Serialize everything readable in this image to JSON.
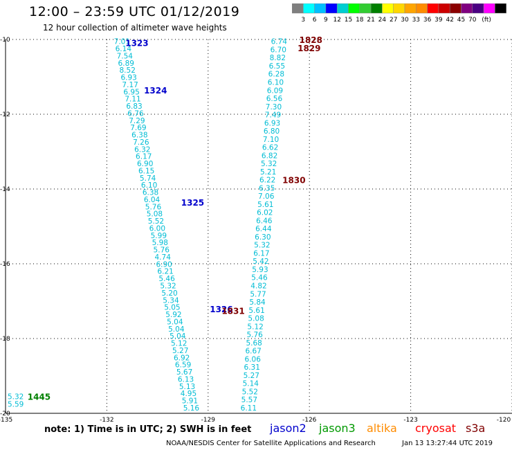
{
  "header": {
    "title": "12:00 – 23:59 UTC 01/12/2019",
    "subtitle": "12 hour collection of altimeter wave heights"
  },
  "colorbar": {
    "colors": [
      "#7f7f7f",
      "#00ffff",
      "#00bfff",
      "#0000ff",
      "#00ced1",
      "#00ff00",
      "#32cd32",
      "#008000",
      "#ffff00",
      "#ffd700",
      "#ffa500",
      "#ff8c00",
      "#ff0000",
      "#cc0000",
      "#8b0000",
      "#800080",
      "#4b0082",
      "#ff00ff",
      "#000000"
    ],
    "labels": [
      "3",
      "6",
      "9",
      "12",
      "15",
      "18",
      "21",
      "24",
      "27",
      "30",
      "33",
      "36",
      "39",
      "42",
      "45",
      "70",
      "(ft)"
    ]
  },
  "map": {
    "lon_range": [
      -135,
      -120
    ],
    "lat_range": [
      -20,
      -10
    ],
    "x_ticks": [
      -135,
      -132,
      -129,
      -126,
      -123,
      -120
    ],
    "y_ticks": [
      -10,
      -12,
      -14,
      -16,
      -18,
      -20
    ],
    "x_tick_labels": [
      "-135",
      "-132",
      "-129",
      "-126",
      "-123",
      "-120"
    ],
    "y_tick_labels": [
      "-10",
      "-12",
      "-14",
      "-16",
      "-18",
      "-20"
    ],
    "value_color": "#00bcd4",
    "tracks": [
      {
        "id": "track-a",
        "start": [
          -131.55,
          -10.05
        ],
        "end": [
          -129.5,
          -19.85
        ],
        "values": [
          "7.01",
          "6.14",
          "7.54",
          "6.89",
          "8.52",
          "6.93",
          "7.17",
          "6.95",
          "7.11",
          "6.83",
          "6.76",
          "7.29",
          "7.69",
          "6.38",
          "7.26",
          "6.32",
          "6.17",
          "6.90",
          "6.15",
          "5.74",
          "6.10",
          "6.38",
          "6.04",
          "5.76",
          "5.08",
          "5.52",
          "6.00",
          "5.99",
          "5.98",
          "5.76",
          "4.74",
          "6.90",
          "6.21",
          "5.46",
          "5.32",
          "5.20",
          "5.34",
          "5.05",
          "5.92",
          "5.04",
          "5.04",
          "5.04",
          "5.12",
          "5.27",
          "6.92",
          "6.59",
          "5.67",
          "6.13",
          "5.13",
          "4.95",
          "5.91",
          "5.16"
        ]
      },
      {
        "id": "track-b",
        "start": [
          -126.9,
          -10.05
        ],
        "end": [
          -127.8,
          -19.85
        ],
        "values": [
          "6.74",
          "6.70",
          "8.82",
          "6.55",
          "6.28",
          "6.10",
          "6.09",
          "6.56",
          "7.30",
          "7.49",
          "6.93",
          "6.80",
          "7.10",
          "6.62",
          "6.82",
          "5.32",
          "5.21",
          "6.22",
          "6.35",
          "7.06",
          "5.61",
          "6.02",
          "6.46",
          "6.44",
          "6.30",
          "5.32",
          "6.17",
          "5.42",
          "5.93",
          "5.46",
          "4.82",
          "5.77",
          "5.84",
          "5.61",
          "5.08",
          "5.12",
          "5.76",
          "5.68",
          "6.67",
          "6.06",
          "6.31",
          "5.27",
          "5.14",
          "5.52",
          "5.57",
          "6.11"
        ]
      },
      {
        "id": "track-c",
        "start": [
          -134.7,
          -19.55
        ],
        "end": [
          -134.7,
          -19.75
        ],
        "values": [
          "5.32",
          "5.59"
        ]
      }
    ],
    "time_labels": [
      {
        "text": "1323",
        "color": "#0000cc",
        "lon": -131.45,
        "lat": -10.08
      },
      {
        "text": "1324",
        "color": "#0000cc",
        "lon": -130.9,
        "lat": -11.35
      },
      {
        "text": "1325",
        "color": "#0000cc",
        "lon": -129.8,
        "lat": -14.35
      },
      {
        "text": "1326",
        "color": "#0000cc",
        "lon": -128.95,
        "lat": -17.2
      },
      {
        "text": "1828",
        "color": "#800000",
        "lon": -126.3,
        "lat": -10.0
      },
      {
        "text": "1829",
        "color": "#800000",
        "lon": -126.35,
        "lat": -10.22
      },
      {
        "text": "1830",
        "color": "#800000",
        "lon": -126.8,
        "lat": -13.75
      },
      {
        "text": "1831",
        "color": "#800000",
        "lon": -128.6,
        "lat": -17.25
      },
      {
        "text": "1445",
        "color": "#008000",
        "lon": -134.35,
        "lat": -19.55
      }
    ]
  },
  "footer": {
    "note": "note: 1) Time is in UTC; 2) SWH is in feet",
    "satellites": [
      {
        "name": "jason2",
        "color": "#0000cc"
      },
      {
        "name": "jason3",
        "color": "#009900"
      },
      {
        "name": "altika",
        "color": "#ff8c00"
      },
      {
        "name": "cryosat",
        "color": "#ff0000"
      },
      {
        "name": "s3a",
        "color": "#800000"
      }
    ],
    "credit": "NOAA/NESDIS Center for Satellite Applications and Research",
    "timestamp": "Jan 13 13:27:44 UTC 2019"
  }
}
